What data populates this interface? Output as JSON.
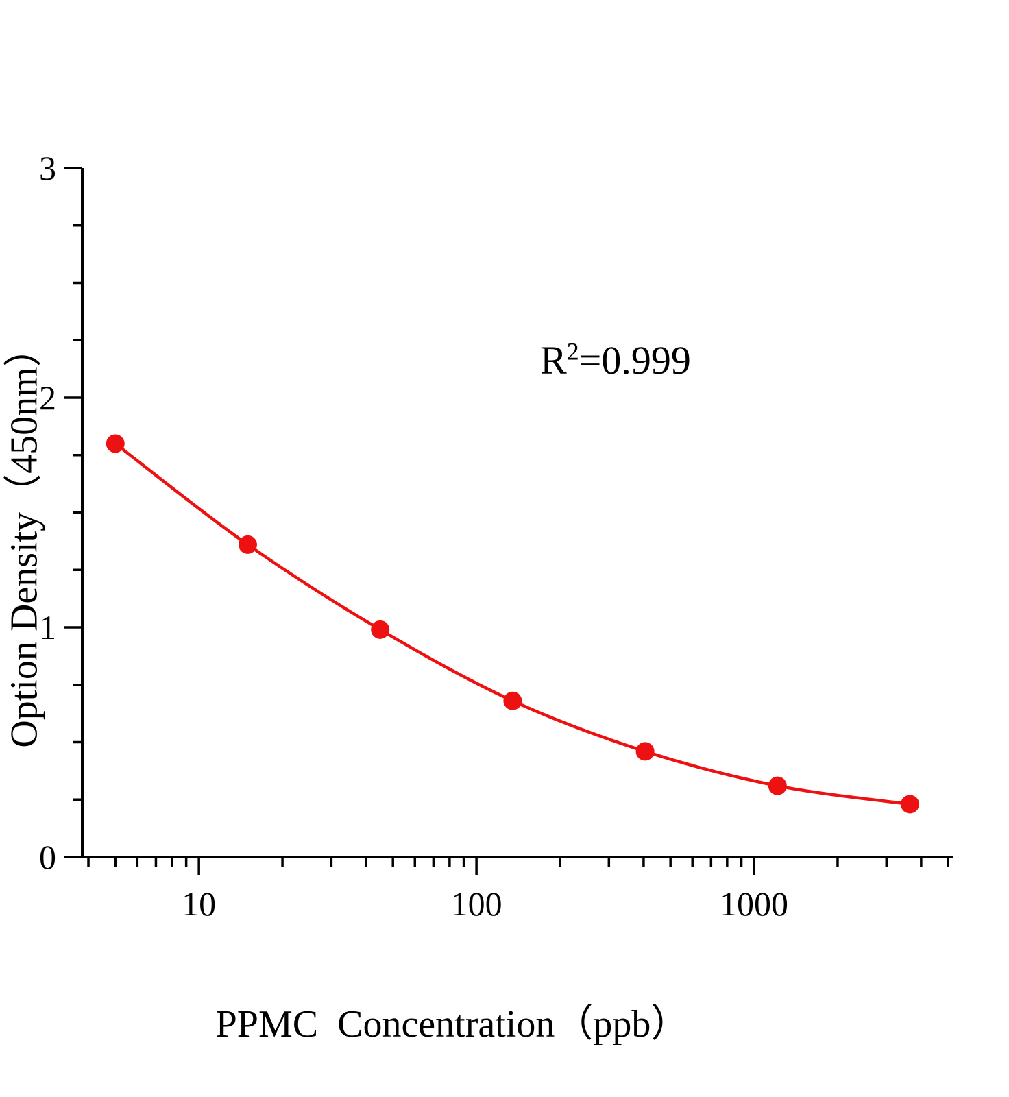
{
  "chart_data": {
    "type": "scatter",
    "title": "",
    "x": [
      5,
      15,
      45,
      135,
      405,
      1215,
      3645
    ],
    "y": [
      1.8,
      1.36,
      0.99,
      0.68,
      0.46,
      0.31,
      0.23
    ],
    "xlabel": "PPMC  Concentration（ppb）",
    "ylabel": "Option Density（450nm）",
    "annotation": {
      "base": "R",
      "sup": "2",
      "rest": "=0.999",
      "text": "R2=0.999"
    },
    "x_scale": "log",
    "xlim": [
      3.8,
      5200
    ],
    "ylim": [
      0,
      3
    ],
    "xticks": [
      10,
      100,
      1000
    ],
    "yticks": [
      0,
      1,
      2,
      3
    ],
    "y_minor_step": 0.25,
    "grid": false,
    "legend": "none",
    "marker": "circle",
    "colors": {
      "curve": "#ee1111",
      "marker": "#ee1111",
      "axis": "#000000"
    }
  }
}
